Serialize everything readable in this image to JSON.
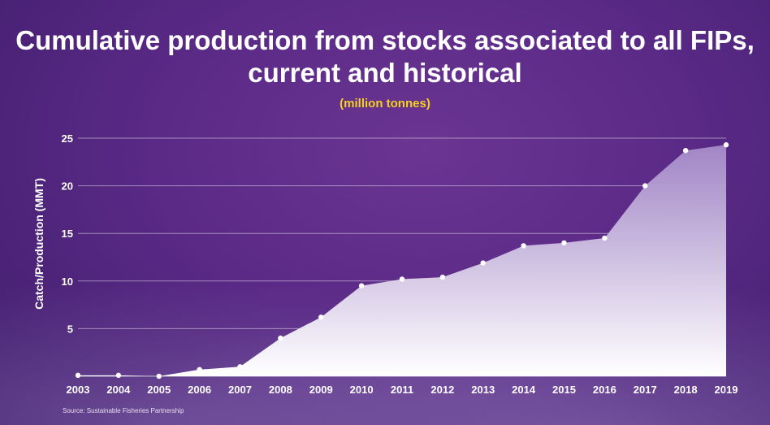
{
  "title": "Cumulative production from stocks associated to all FIPs, current and historical",
  "subtitle": "(million tonnes)",
  "source": "Source: Sustainable Fisheries Partnership",
  "colors": {
    "accent_subtitle": "#f5d020",
    "background": "#5a2a86",
    "area_top": "#a58ac9",
    "area_bottom": "#ffffff",
    "marker": "#ffffff"
  },
  "chart_data": {
    "type": "area",
    "title": "Cumulative production from stocks associated to all FIPs, current and historical",
    "subtitle": "(million tonnes)",
    "xlabel": "",
    "ylabel": "Catch/Production (MMT)",
    "x": [
      "2003",
      "2004",
      "2005",
      "2006",
      "2007",
      "2008",
      "2009",
      "2010",
      "2011",
      "2012",
      "2013",
      "2014",
      "2015",
      "2016",
      "2017",
      "2018",
      "2019"
    ],
    "values": [
      0.1,
      0.1,
      0.0,
      0.7,
      1.0,
      4.0,
      6.2,
      9.5,
      10.2,
      10.4,
      11.9,
      13.7,
      14.0,
      14.5,
      20.0,
      23.7,
      24.3
    ],
    "yticks": [
      5,
      10,
      15,
      20,
      25
    ],
    "ylim": [
      0,
      25
    ],
    "grid": true,
    "markers": true
  }
}
